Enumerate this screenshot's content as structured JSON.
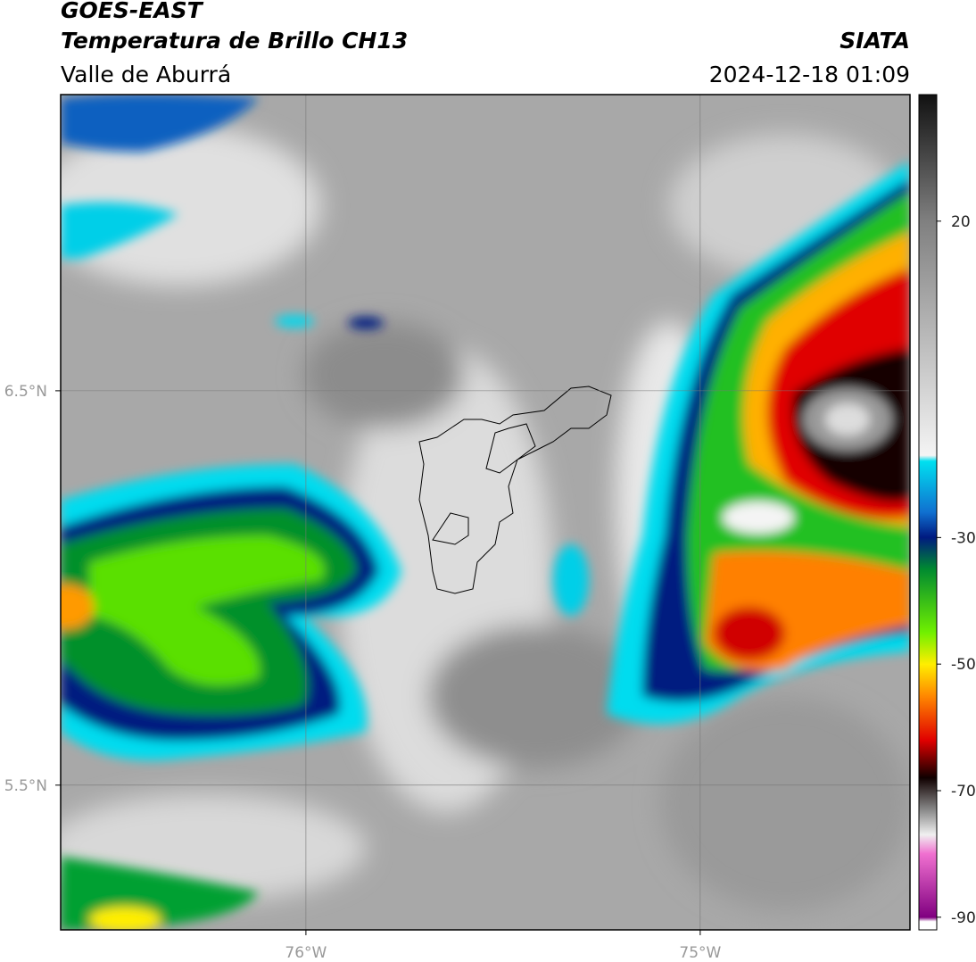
{
  "header": {
    "title": "GOES-EAST",
    "subtitle": "Temperatura de Brillo CH13",
    "region": "Valle de Aburrá",
    "source": "SIATA",
    "datetime": "2024-12-18 01:09"
  },
  "map": {
    "xlim": [
      -76.622,
      -74.468
    ],
    "ylim": [
      5.133,
      7.251
    ],
    "xticks": [
      {
        "value": -76,
        "label": "76°W"
      },
      {
        "value": -75,
        "label": "75°W"
      }
    ],
    "yticks": [
      {
        "value": 6.5,
        "label": "6.5°N"
      },
      {
        "value": 5.5,
        "label": "5.5°N"
      }
    ],
    "grid": true
  },
  "colorbar": {
    "clim": [
      -92,
      40
    ],
    "ticks": [
      20,
      -30,
      -50,
      -70,
      -90
    ]
  }
}
